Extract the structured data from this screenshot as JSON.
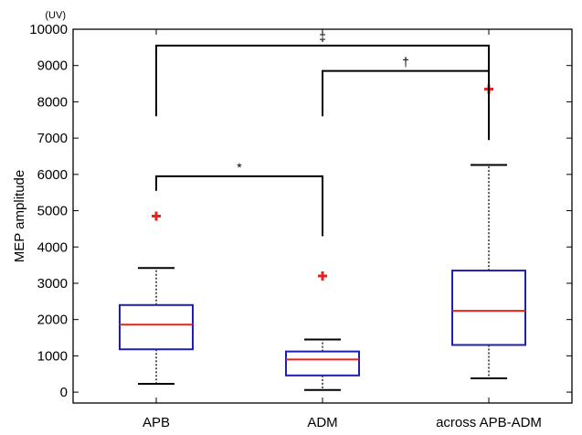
{
  "chart_data": {
    "type": "box",
    "title": "",
    "xlabel": "",
    "ylabel": "MEP amplitude",
    "unit_label": "(UV)",
    "ylim": [
      -300,
      10000
    ],
    "yticks": [
      0,
      1000,
      2000,
      3000,
      4000,
      5000,
      6000,
      7000,
      8000,
      9000,
      10000
    ],
    "categories": [
      "APB",
      "ADM",
      "across APB-ADM"
    ],
    "boxes": [
      {
        "category": "APB",
        "whisker_low": 230,
        "q1": 1180,
        "median": 1860,
        "q3": 2400,
        "whisker_high": 3420,
        "outliers": [
          4850
        ]
      },
      {
        "category": "ADM",
        "whisker_low": 60,
        "q1": 460,
        "median": 900,
        "q3": 1120,
        "whisker_high": 1450,
        "outliers": [
          3200
        ]
      },
      {
        "category": "across APB-ADM",
        "whisker_low": 380,
        "q1": 1300,
        "median": 2240,
        "q3": 3350,
        "whisker_high": 6260,
        "outliers": [
          8350
        ]
      }
    ],
    "significance": [
      {
        "from": "APB",
        "to": "ADM",
        "label": "*",
        "bar_y": 5950,
        "left_drop": 5550,
        "right_drop": 4300
      },
      {
        "from": "ADM",
        "to": "across APB-ADM",
        "label": "†",
        "bar_y": 8850,
        "left_drop": 7600,
        "right_drop": 6950
      },
      {
        "from": "APB",
        "to": "across APB-ADM",
        "label": "‡",
        "bar_y": 9550,
        "left_drop": 7600,
        "right_drop": 6950
      }
    ],
    "colors": {
      "box": "#1f1fb4",
      "median": "#e8231f",
      "outlier": "#e8231f",
      "whisker": "#000000"
    }
  }
}
